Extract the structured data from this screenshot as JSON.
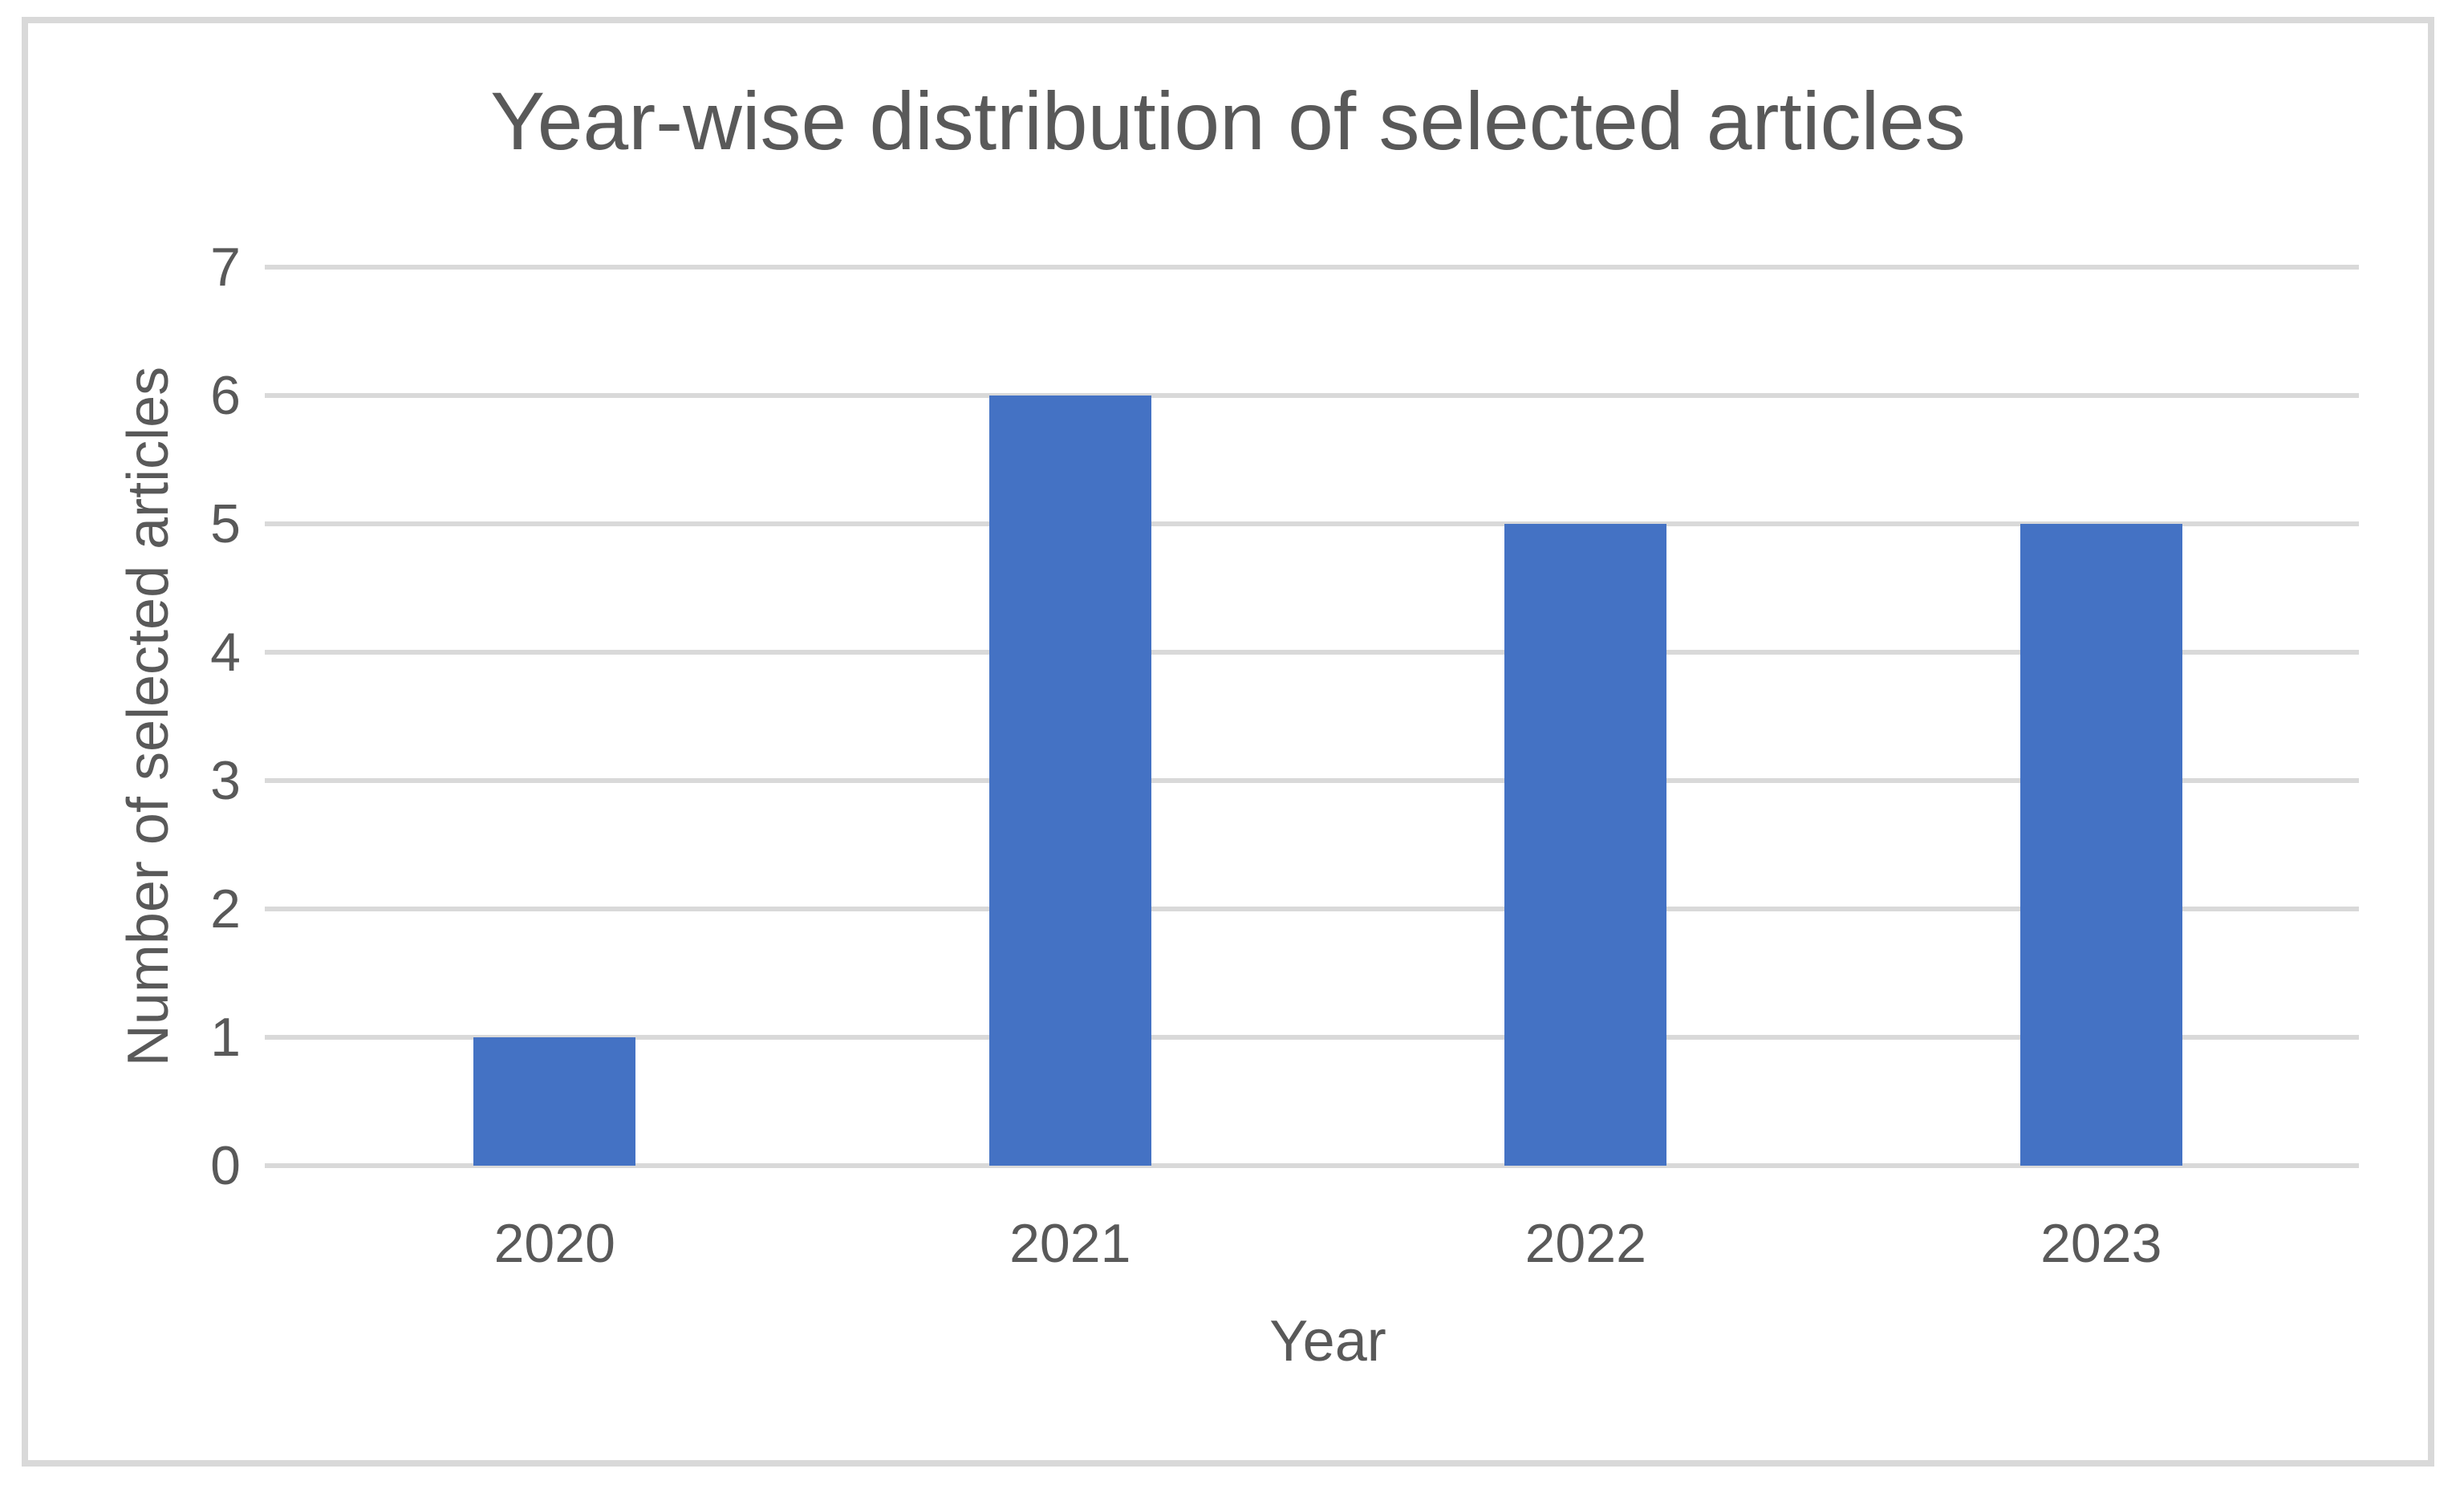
{
  "chart_data": {
    "type": "bar",
    "title": "Year-wise distribution of selected articles",
    "categories": [
      "2020",
      "2021",
      "2022",
      "2023"
    ],
    "values": [
      1,
      6,
      5,
      5
    ],
    "xlabel": "Year",
    "ylabel": "Number of selected articles",
    "ylim": [
      0,
      7
    ],
    "yticks": [
      0,
      1,
      2,
      3,
      4,
      5,
      6,
      7
    ],
    "grid": true,
    "legend": false,
    "bar_color": "#4472C4",
    "gridline_color": "#D9D9D9",
    "axis_line_color": "#D9D9D9",
    "frame_border_color": "#D9D9D9",
    "text_color": "#595959"
  }
}
